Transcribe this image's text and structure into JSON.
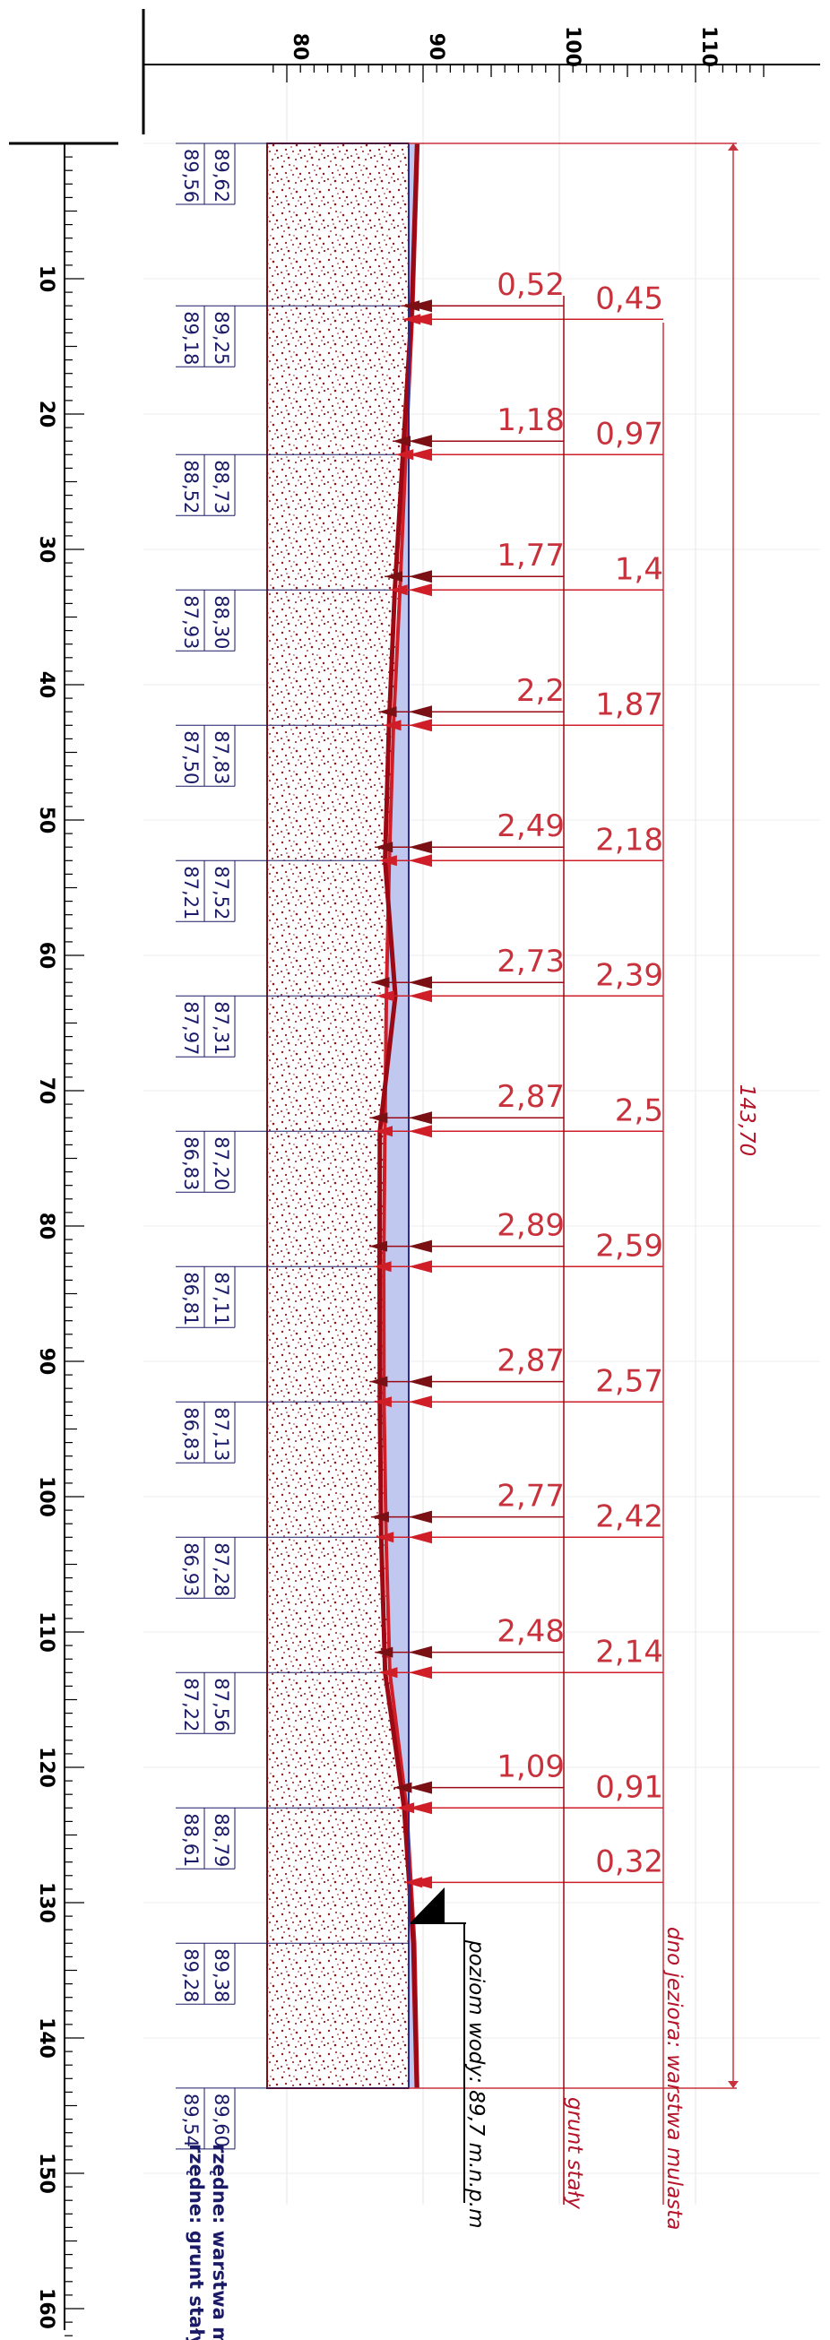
{
  "x_axis": {
    "ticks": [
      "80",
      "90",
      "100",
      "110"
    ]
  },
  "y_axis": {
    "ticks": [
      "10",
      "20",
      "30",
      "40",
      "50",
      "60",
      "70",
      "80",
      "90",
      "100",
      "110",
      "120",
      "130",
      "140",
      "150",
      "160"
    ]
  },
  "elevation_pairs": [
    {
      "top": "89,62",
      "bottom": "89,56"
    },
    {
      "top": "89,25",
      "bottom": "89,18"
    },
    {
      "top": "88,73",
      "bottom": "88,52"
    },
    {
      "top": "88,30",
      "bottom": "87,93"
    },
    {
      "top": "87,83",
      "bottom": "87,50"
    },
    {
      "top": "87,52",
      "bottom": "87,21"
    },
    {
      "top": "87,31",
      "bottom": "87,97"
    },
    {
      "top": "87,20",
      "bottom": "86,83"
    },
    {
      "top": "87,11",
      "bottom": "86,81"
    },
    {
      "top": "87,13",
      "bottom": "86,83"
    },
    {
      "top": "87,28",
      "bottom": "86,93"
    },
    {
      "top": "87,56",
      "bottom": "87,22"
    },
    {
      "top": "88,79",
      "bottom": "88,61"
    },
    {
      "top": "89,38",
      "bottom": "89,28"
    },
    {
      "top": "89,60",
      "bottom": "89,54"
    }
  ],
  "depths_soil": [
    "0,52",
    "1,18",
    "1,77",
    "2,2",
    "2,49",
    "2,73",
    "2,87",
    "2,89",
    "2,87",
    "2,77",
    "2,48",
    "1,09"
  ],
  "depths_mud": [
    "0,45",
    "0,97",
    "1,4",
    "1,87",
    "2,18",
    "2,39",
    "2,5",
    "2,59",
    "2,57",
    "2,42",
    "2,14",
    "0,91",
    "0,32"
  ],
  "total_length": "143,70",
  "labels": {
    "water_level": "poziom wody: 89,7 m.n.p.m",
    "firm_soil": "grunt stały",
    "lake_bottom": "dno jeziora: warstwa mulasta",
    "legend_mud": "rzędne: warstwa mulasta",
    "legend_soil": "rzędne: grunt stały"
  },
  "colors": {
    "water": "#c0c8f0",
    "soil_line": "#9b0a14",
    "mud_line": "#d01e28",
    "dim_line": "#c8323c",
    "hatch_border": "#7a0f14",
    "elevation_text": "#1a1a66"
  }
}
